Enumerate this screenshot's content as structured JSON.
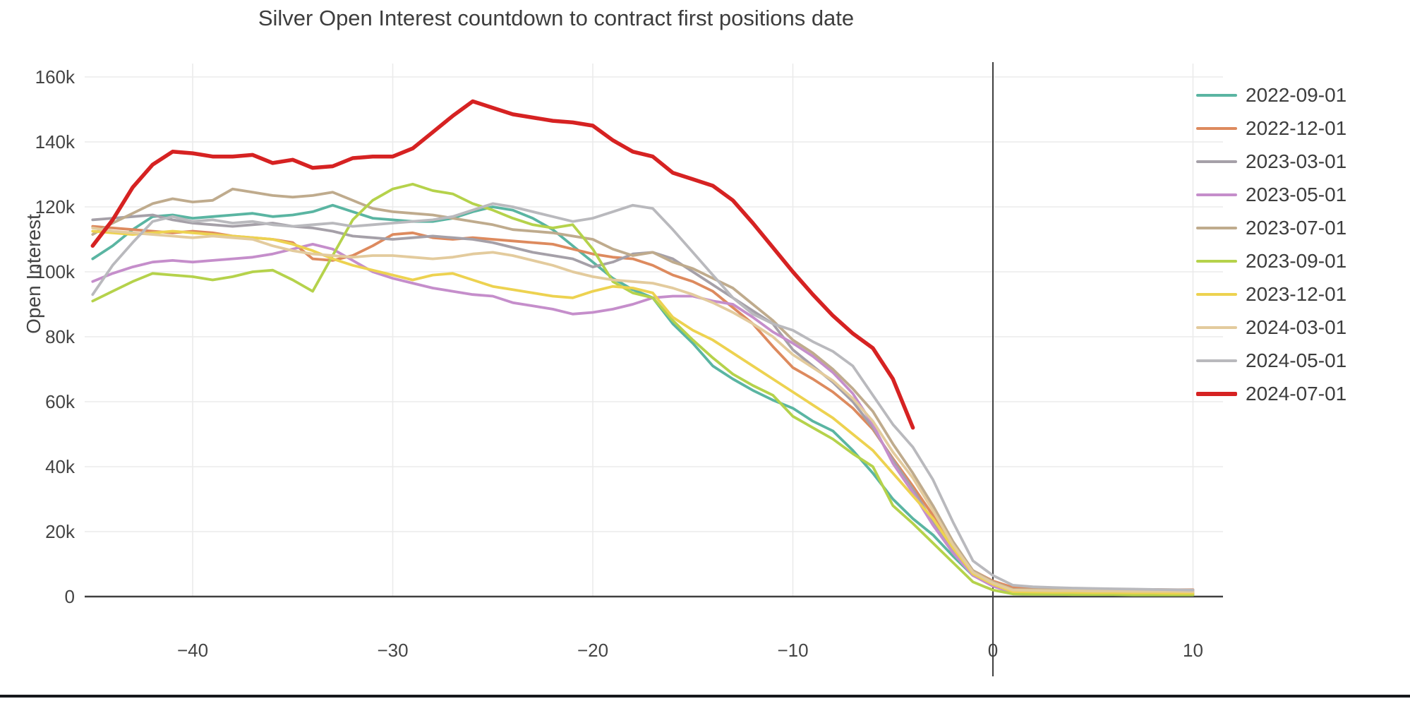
{
  "title": "Silver Open Interest countdown to contract first positions date",
  "y_axis": {
    "label": "Open Interest",
    "ticks": [
      {
        "label": "0",
        "value": 0
      },
      {
        "label": "20k",
        "value": 20
      },
      {
        "label": "40k",
        "value": 40
      },
      {
        "label": "60k",
        "value": 60
      },
      {
        "label": "80k",
        "value": 80
      },
      {
        "label": "100k",
        "value": 100
      },
      {
        "label": "120k",
        "value": 120
      },
      {
        "label": "140k",
        "value": 140
      },
      {
        "label": "160k",
        "value": 160
      }
    ]
  },
  "x_axis": {
    "ticks": [
      {
        "label": "−40",
        "value": -40
      },
      {
        "label": "−30",
        "value": -30
      },
      {
        "label": "−20",
        "value": -20
      },
      {
        "label": "−10",
        "value": -10
      },
      {
        "label": "0",
        "value": 0
      },
      {
        "label": "10",
        "value": 10
      }
    ]
  },
  "chart_data": {
    "type": "line",
    "title": "Silver Open Interest countdown to contract first positions date",
    "xlabel": "",
    "ylabel": "Open Interest",
    "y_unit": "contracts, values in thousands (k)",
    "xlim": [
      -45.8,
      10.8
    ],
    "ylim": [
      0,
      165
    ],
    "grid": true,
    "legend_position": "right",
    "zero_axis_line": true,
    "x": [
      -45,
      -44,
      -43,
      -42,
      -41,
      -40,
      -39,
      -38,
      -37,
      -36,
      -35,
      -34,
      -33,
      -32,
      -31,
      -30,
      -29,
      -28,
      -27,
      -26,
      -25,
      -24,
      -23,
      -22,
      -21,
      -20,
      -19,
      -18,
      -17,
      -16,
      -15,
      -14,
      -13,
      -12,
      -11,
      -10,
      -9,
      -8,
      -7,
      -6,
      -5,
      -4,
      -3,
      -2,
      -1,
      0,
      1,
      2,
      3,
      4,
      5,
      6,
      7,
      8,
      9,
      10
    ],
    "series": [
      {
        "name": "2022-09-01",
        "color": "#5ab5a2",
        "width": 3.8,
        "values": [
          104,
          108,
          113,
          117,
          117.5,
          116.5,
          117,
          117.5,
          118,
          117,
          117.5,
          118.5,
          120.5,
          118.5,
          116.5,
          116,
          115.5,
          115.5,
          116.5,
          118.5,
          120,
          119,
          116.5,
          113,
          108,
          103,
          98,
          94.5,
          92,
          84,
          78,
          71,
          67,
          63.5,
          60.5,
          58,
          54,
          51,
          45,
          38,
          30,
          24,
          19,
          12.5,
          6.5,
          3.5,
          1.8,
          1.5,
          1.3,
          1.2,
          1.2,
          1.1,
          1.1,
          1,
          1,
          0.9
        ]
      },
      {
        "name": "2022-12-01",
        "color": "#dd8a5e",
        "width": 3.8,
        "values": [
          114,
          113.5,
          113,
          112.5,
          112,
          112.5,
          112,
          111,
          110.5,
          110,
          109,
          104,
          103.5,
          105,
          108,
          111.5,
          112,
          110.5,
          110,
          110.5,
          110,
          109.5,
          109,
          108.5,
          107,
          105.5,
          104.5,
          104,
          102,
          99,
          97,
          94,
          89,
          84,
          77,
          70.5,
          67,
          63,
          58,
          51.5,
          42.5,
          34,
          25,
          15.5,
          8,
          4.8,
          2.8,
          2.6,
          2.5,
          2.4,
          2.3,
          2.3,
          2.2,
          2.2,
          2.1,
          2.1
        ]
      },
      {
        "name": "2023-03-01",
        "color": "#a5a0a8",
        "width": 3.8,
        "values": [
          116,
          116.5,
          117,
          117.5,
          116,
          115,
          114.5,
          114,
          114.5,
          115,
          114,
          113.5,
          112.5,
          111,
          110.5,
          110,
          110.5,
          111,
          110.5,
          110,
          109,
          107.5,
          106,
          105,
          104,
          101.5,
          103,
          105.5,
          106,
          104,
          100,
          96,
          92,
          88,
          84,
          76,
          71,
          66,
          60,
          52,
          42,
          33,
          23,
          14,
          7,
          4,
          2,
          1.9,
          1.8,
          1.7,
          1.7,
          1.6,
          1.6,
          1.5,
          1.5,
          1.4
        ]
      },
      {
        "name": "2023-05-01",
        "color": "#c58ecb",
        "width": 3.8,
        "values": [
          97,
          99.5,
          101.5,
          103,
          103.5,
          103,
          103.5,
          104,
          104.5,
          105.5,
          107,
          108.5,
          107,
          103.5,
          100,
          98,
          96.5,
          95,
          94,
          93,
          92.5,
          90.5,
          89.5,
          88.5,
          87,
          87.5,
          88.5,
          90,
          92,
          92.5,
          92.5,
          91,
          90,
          86,
          81.5,
          78,
          74,
          69,
          62.5,
          53,
          41,
          32,
          22,
          13.5,
          6.5,
          3.2,
          1.2,
          1.1,
          1.1,
          1,
          1,
          0.9,
          0.9,
          0.8,
          0.8,
          0.8
        ]
      },
      {
        "name": "2023-07-01",
        "color": "#bfab8d",
        "width": 3.8,
        "values": [
          111.5,
          115,
          118,
          121,
          122.5,
          121.5,
          122,
          125.5,
          124.5,
          123.5,
          123,
          123.5,
          124.5,
          122,
          119.5,
          118.5,
          118,
          117.5,
          116.5,
          115.5,
          114.5,
          113,
          112.5,
          112,
          111,
          110,
          107,
          105,
          106,
          103,
          101,
          98,
          95,
          90,
          85,
          79,
          75,
          70,
          64,
          57,
          47,
          38,
          28,
          17,
          8,
          4.5,
          2.2,
          2.1,
          2,
          2,
          1.9,
          1.9,
          1.8,
          1.8,
          1.8,
          1.7
        ]
      },
      {
        "name": "2023-09-01",
        "color": "#b5d24b",
        "width": 3.8,
        "values": [
          91,
          94,
          97,
          99.5,
          99,
          98.5,
          97.5,
          98.5,
          100,
          100.5,
          97.5,
          94,
          105,
          116,
          122,
          125.5,
          127,
          125,
          124,
          121,
          119,
          116.5,
          114.5,
          113.5,
          114.5,
          107,
          97,
          93.5,
          92,
          85,
          79,
          73.5,
          68.5,
          65,
          62,
          55.5,
          52,
          48.5,
          44,
          40,
          28,
          22.5,
          16.5,
          10.5,
          4.5,
          2,
          0.8,
          0.7,
          0.7,
          0.6,
          0.6,
          0.6,
          0.5,
          0.5,
          0.5,
          0.5
        ]
      },
      {
        "name": "2023-12-01",
        "color": "#edd250",
        "width": 3.8,
        "values": [
          112.5,
          112,
          111.5,
          112,
          112.5,
          112,
          111.5,
          111,
          110.5,
          110,
          108.5,
          106.5,
          104,
          102,
          100.5,
          99,
          97.5,
          99,
          99.5,
          97.5,
          95.5,
          94.5,
          93.5,
          92.5,
          92,
          94,
          95.5,
          95,
          93.5,
          86,
          82,
          79,
          75,
          71,
          67,
          63,
          59,
          55,
          50,
          45,
          38,
          31,
          24,
          15,
          7,
          3.8,
          1.5,
          1.4,
          1.3,
          1.3,
          1.2,
          1.2,
          1.1,
          1.1,
          1,
          1
        ]
      },
      {
        "name": "2024-03-01",
        "color": "#e3cb9d",
        "width": 3.8,
        "values": [
          113.5,
          112.5,
          112,
          111.5,
          111,
          110.5,
          111,
          110.5,
          110,
          108,
          106.5,
          105.5,
          105,
          104.5,
          105,
          105,
          104.5,
          104,
          104.5,
          105.5,
          106,
          105,
          103.5,
          102,
          100,
          98.5,
          97.5,
          97,
          96.5,
          95,
          93,
          90.5,
          87.5,
          84,
          80,
          74.5,
          70.5,
          66.5,
          61,
          54,
          44.5,
          36.5,
          26.5,
          16,
          7.5,
          4.2,
          2,
          1.9,
          1.8,
          1.8,
          1.7,
          1.7,
          1.6,
          1.6,
          1.6,
          1.5
        ]
      },
      {
        "name": "2024-05-01",
        "color": "#b9b9bd",
        "width": 3.8,
        "values": [
          93,
          102,
          109,
          115.5,
          117,
          115.5,
          116,
          115,
          115.5,
          114.5,
          114,
          114.5,
          115,
          114,
          114.5,
          115,
          115.5,
          116,
          117,
          119,
          121,
          120,
          118.5,
          117,
          115.5,
          116.5,
          118.5,
          120.5,
          119.5,
          113,
          106,
          99,
          92,
          87,
          84,
          82,
          78.5,
          75.5,
          71,
          62,
          53,
          46,
          36,
          23,
          11,
          6.5,
          3.5,
          3,
          2.8,
          2.6,
          2.5,
          2.4,
          2.3,
          2.2,
          2.1,
          2
        ]
      },
      {
        "name": "2024-07-01",
        "color": "#d62222",
        "width": 5.5,
        "values": [
          108,
          116,
          126,
          133,
          137,
          136.5,
          135.5,
          135.5,
          136,
          133.5,
          134.5,
          132,
          132.5,
          135,
          135.5,
          135.5,
          138,
          143,
          148,
          152.5,
          150.5,
          148.5,
          147.5,
          146.5,
          146,
          145,
          140.5,
          137,
          135.5,
          130.5,
          128.5,
          126.5,
          122,
          115,
          107.5,
          100,
          93,
          86.5,
          81,
          76.5,
          67,
          52,
          null,
          null,
          null,
          null,
          null,
          null,
          null,
          null,
          null,
          null,
          null,
          null,
          null,
          null
        ]
      }
    ]
  },
  "colors": {
    "grid": "#ebebeb",
    "axis": "#3f3f3f",
    "tick_text": "#444444",
    "title_text": "#3d3d3d",
    "divider": "#15181c"
  }
}
